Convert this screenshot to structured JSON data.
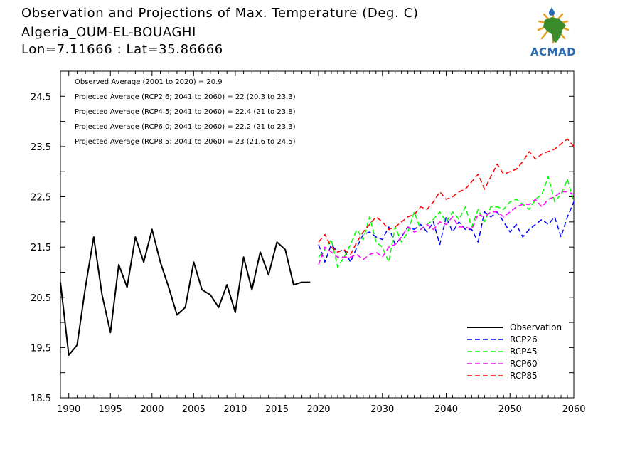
{
  "header": {
    "line1": "Observation and Projections of Max. Temperature (Deg. C)",
    "line2": "Algeria_OUM-EL-BOUAGHI",
    "line3": "Lon=7.11666 : Lat=35.86666"
  },
  "logo": {
    "text": "ACMAD"
  },
  "chart_data": {
    "type": "line",
    "xlim": [
      1989,
      2060
    ],
    "ylim": [
      18.5,
      25.0
    ],
    "x_ticks": [
      1990,
      1995,
      2000,
      2005,
      2010,
      2015,
      2020,
      2030,
      2040,
      2050,
      2060
    ],
    "x_tick_labels": [
      "1990",
      "1995",
      "2000",
      "2005",
      "2010",
      "2015",
      "2020",
      "2030",
      "2040",
      "2050",
      "2060"
    ],
    "y_ticks": [
      18.5,
      19.5,
      20.5,
      21.5,
      22.5,
      23.5,
      24.5
    ],
    "y_tick_labels": [
      "18.5",
      "19.5",
      "20.5",
      "21.5",
      "22.5",
      "23.5",
      "24.5"
    ],
    "annotations": [
      "Observed Average (2001 to 2020) = 20.9",
      "Projected Average (RCP2.6; 2041 to 2060) = 22 (20.3 to 23.3)",
      "Projected Average (RCP4.5; 2041 to 2060) = 22.4 (21 to 23.8)",
      "Projected Average (RCP6.0; 2041 to 2060) = 22.2 (21 to 23.3)",
      "Projected Average (RCP8.5; 2041 to 2060) = 23 (21.6 to 24.5)"
    ],
    "legend_position": "bottom-right",
    "series": [
      {
        "name": "Observation",
        "color": "#000000",
        "dash": false,
        "x": [
          1989,
          1990,
          1991,
          1992,
          1993,
          1994,
          1995,
          1996,
          1997,
          1998,
          1999,
          2000,
          2001,
          2002,
          2003,
          2004,
          2005,
          2006,
          2007,
          2008,
          2009,
          2010,
          2011,
          2012,
          2013,
          2014,
          2015,
          2016,
          2017,
          2018,
          2019
        ],
        "y": [
          20.8,
          19.35,
          19.55,
          20.7,
          21.7,
          20.55,
          19.8,
          21.15,
          20.7,
          21.7,
          21.2,
          21.85,
          21.2,
          20.7,
          20.15,
          20.3,
          21.2,
          20.65,
          20.55,
          20.3,
          20.75,
          20.2,
          21.3,
          20.65,
          21.4,
          20.95,
          21.6,
          21.45,
          20.75,
          20.8,
          20.8
        ]
      },
      {
        "name": "RCP26",
        "color": "#0000ff",
        "dash": true,
        "x": [
          2020,
          2021,
          2022,
          2023,
          2024,
          2025,
          2026,
          2027,
          2028,
          2029,
          2030,
          2031,
          2032,
          2033,
          2034,
          2035,
          2036,
          2037,
          2038,
          2039,
          2040,
          2041,
          2042,
          2043,
          2044,
          2045,
          2046,
          2047,
          2048,
          2049,
          2050,
          2051,
          2052,
          2053,
          2054,
          2055,
          2056,
          2057,
          2058,
          2059,
          2060
        ],
        "y": [
          21.55,
          21.2,
          21.55,
          21.4,
          21.45,
          21.2,
          21.5,
          21.75,
          21.8,
          21.7,
          21.65,
          21.9,
          21.55,
          21.7,
          21.9,
          21.85,
          21.95,
          21.8,
          22.0,
          21.55,
          22.1,
          21.8,
          22.0,
          21.85,
          21.85,
          21.6,
          22.2,
          22.1,
          22.2,
          22.0,
          21.8,
          21.95,
          21.7,
          21.85,
          21.95,
          22.05,
          21.95,
          22.1,
          21.7,
          22.1,
          22.4
        ]
      },
      {
        "name": "RCP45",
        "color": "#00ff00",
        "dash": true,
        "x": [
          2020,
          2021,
          2022,
          2023,
          2024,
          2025,
          2026,
          2027,
          2028,
          2029,
          2030,
          2031,
          2032,
          2033,
          2034,
          2035,
          2036,
          2037,
          2038,
          2039,
          2040,
          2041,
          2042,
          2043,
          2044,
          2045,
          2046,
          2047,
          2048,
          2049,
          2050,
          2051,
          2052,
          2053,
          2054,
          2055,
          2056,
          2057,
          2058,
          2059,
          2060
        ],
        "y": [
          21.3,
          21.45,
          21.65,
          21.1,
          21.3,
          21.55,
          21.85,
          21.65,
          22.1,
          21.6,
          21.5,
          21.2,
          21.9,
          21.6,
          21.8,
          22.2,
          21.85,
          21.95,
          22.05,
          22.2,
          22.0,
          22.2,
          22.05,
          22.3,
          21.9,
          22.25,
          22.0,
          22.3,
          22.3,
          22.25,
          22.4,
          22.45,
          22.35,
          22.25,
          22.45,
          22.55,
          22.9,
          22.4,
          22.55,
          22.85,
          22.4
        ]
      },
      {
        "name": "RCP60",
        "color": "#ff00ff",
        "dash": true,
        "x": [
          2020,
          2021,
          2022,
          2023,
          2024,
          2025,
          2026,
          2027,
          2028,
          2029,
          2030,
          2031,
          2032,
          2033,
          2034,
          2035,
          2036,
          2037,
          2038,
          2039,
          2040,
          2041,
          2042,
          2043,
          2044,
          2045,
          2046,
          2047,
          2048,
          2049,
          2050,
          2051,
          2052,
          2053,
          2054,
          2055,
          2056,
          2057,
          2058,
          2059,
          2060
        ],
        "y": [
          21.15,
          21.5,
          21.4,
          21.3,
          21.3,
          21.3,
          21.35,
          21.25,
          21.35,
          21.4,
          21.3,
          21.5,
          21.55,
          21.7,
          21.9,
          21.8,
          21.85,
          21.95,
          21.85,
          22.0,
          21.95,
          22.1,
          21.9,
          21.9,
          21.85,
          22.15,
          22.1,
          22.2,
          22.2,
          22.1,
          22.2,
          22.3,
          22.35,
          22.35,
          22.45,
          22.3,
          22.45,
          22.5,
          22.6,
          22.6,
          22.55
        ]
      },
      {
        "name": "RCP85",
        "color": "#ff0000",
        "dash": true,
        "x": [
          2020,
          2021,
          2022,
          2023,
          2024,
          2025,
          2026,
          2027,
          2028,
          2029,
          2030,
          2031,
          2032,
          2033,
          2034,
          2035,
          2036,
          2037,
          2038,
          2039,
          2040,
          2041,
          2042,
          2043,
          2044,
          2045,
          2046,
          2047,
          2048,
          2049,
          2050,
          2051,
          2052,
          2053,
          2054,
          2055,
          2056,
          2057,
          2058,
          2059,
          2060
        ],
        "y": [
          21.6,
          21.75,
          21.5,
          21.4,
          21.45,
          21.35,
          21.6,
          21.8,
          21.95,
          22.1,
          22.0,
          21.85,
          21.9,
          22.0,
          22.1,
          22.15,
          22.3,
          22.25,
          22.4,
          22.6,
          22.45,
          22.5,
          22.6,
          22.65,
          22.8,
          22.95,
          22.65,
          22.9,
          23.15,
          22.95,
          23.0,
          23.05,
          23.2,
          23.4,
          23.25,
          23.35,
          23.4,
          23.45,
          23.55,
          23.65,
          23.5
        ]
      }
    ]
  }
}
